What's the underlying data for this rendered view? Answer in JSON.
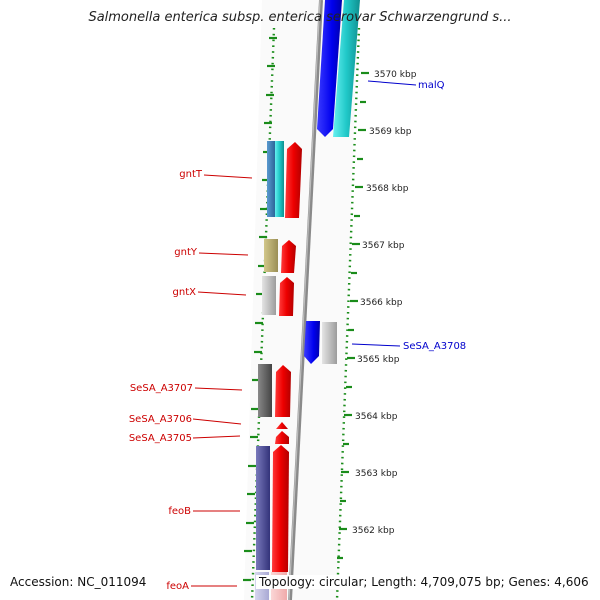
{
  "title": "Salmonella enterica subsp. enterica serovar Schwarzengrund s...",
  "footer": {
    "accession": "Accession: NC_011094",
    "topology": "Topology: circular; Length: 4,709,075 bp; Genes: 4,606"
  },
  "colors": {
    "left_label": "#cc0000",
    "right_label": "#0000cc",
    "dotted_track": "#1a8c1a",
    "backbone": "#808080"
  },
  "scale_ticks": [
    {
      "label": "3570 kbp"
    },
    {
      "label": "3569 kbp"
    },
    {
      "label": "3568 kbp"
    },
    {
      "label": "3567 kbp"
    },
    {
      "label": "3566 kbp"
    },
    {
      "label": "3565 kbp"
    },
    {
      "label": "3564 kbp"
    },
    {
      "label": "3563 kbp"
    },
    {
      "label": "3562 kbp"
    }
  ],
  "left_genes": [
    {
      "label": "gntT"
    },
    {
      "label": "gntY"
    },
    {
      "label": "gntX"
    },
    {
      "label": "SeSA_A3707"
    },
    {
      "label": "SeSA_A3706"
    },
    {
      "label": "SeSA_A3705"
    },
    {
      "label": "feoB"
    },
    {
      "label": "feoA"
    }
  ],
  "right_genes": [
    {
      "label": "malQ"
    },
    {
      "label": "SeSA_A3708"
    }
  ]
}
